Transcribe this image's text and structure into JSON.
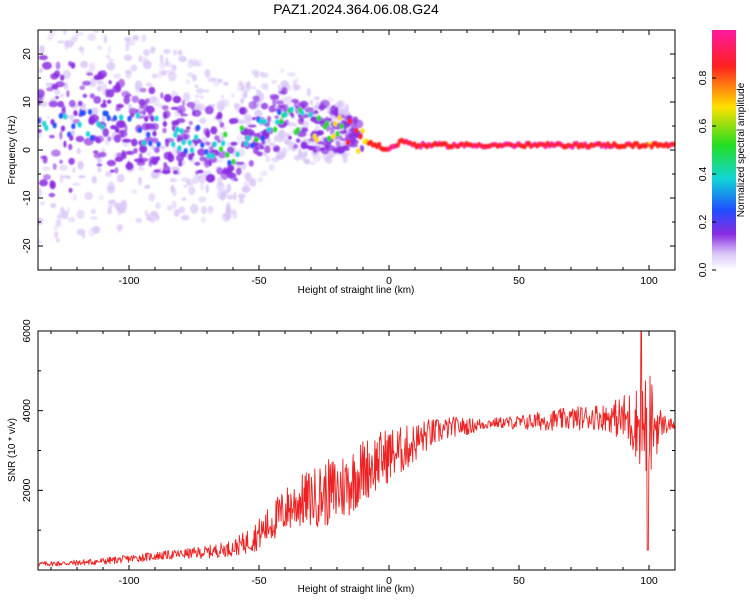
{
  "title": "PAZ1.2024.364.06.08.G24",
  "chart_data": [
    {
      "type": "heatmap",
      "title": "PAZ1.2024.364.06.08.G24",
      "xlabel": "Height of straight line (km)",
      "ylabel": "Frequency (Hz)",
      "xlim": [
        -135,
        110
      ],
      "ylim": [
        -25,
        25
      ],
      "xticks": [
        -100,
        -50,
        0,
        50,
        100
      ],
      "yticks": [
        -20,
        -10,
        0,
        10,
        20
      ],
      "colorbar": {
        "label": "Normalized spectral amplitude",
        "range": [
          0,
          1
        ],
        "ticks": [
          0.0,
          0.2,
          0.4,
          0.6,
          0.8
        ],
        "colormap": "rainbow: white-lavender, purple, blue, cyan, green, yellow, red, magenta"
      },
      "ridge": {
        "x": [
          -130,
          -110,
          -100,
          -90,
          -80,
          -70,
          -60,
          -50,
          -40,
          -30,
          -20,
          -15,
          -10,
          -5,
          0,
          5,
          10,
          20,
          40,
          60,
          80,
          95,
          100,
          110
        ],
        "frequency": [
          5,
          5,
          5,
          4,
          3,
          1,
          0,
          5,
          7,
          5,
          4,
          4,
          2,
          1,
          0,
          2,
          1,
          1,
          1,
          1,
          1,
          1,
          1,
          1
        ],
        "amplitude": [
          0.25,
          0.3,
          0.3,
          0.3,
          0.3,
          0.35,
          0.35,
          0.35,
          0.4,
          0.45,
          0.6,
          0.7,
          0.75,
          0.8,
          0.85,
          0.85,
          0.9,
          0.9,
          0.92,
          0.92,
          0.9,
          0.8,
          0.7,
          0.85
        ]
      },
      "colors": {
        "lavender": "#d8c4f7",
        "purple": "#8a2be2",
        "blue": "#1f4fff",
        "cyan": "#11d6d6",
        "green": "#22dd22",
        "yellow": "#ffe000",
        "red": "#ff2020",
        "magenta": "#ff1aa0"
      }
    },
    {
      "type": "line",
      "xlabel": "Height of straight line (km)",
      "ylabel": "SNR (10 * v/v)",
      "xlim": [
        -135,
        110
      ],
      "ylim": [
        0,
        6000
      ],
      "xticks": [
        -100,
        -50,
        0,
        50,
        100
      ],
      "yticks": [
        2000,
        4000,
        6000
      ],
      "color": "#ee2222",
      "series": [
        {
          "x": [
            -135,
            -120,
            -110,
            -100,
            -90,
            -80,
            -70,
            -60,
            -55,
            -50,
            -45,
            -40,
            -35,
            -30,
            -25,
            -20,
            -15,
            -10,
            -5,
            0,
            5,
            10,
            15,
            20,
            25,
            30,
            40,
            50,
            60,
            70,
            80,
            90,
            95,
            100,
            105,
            110
          ],
          "values": [
            150,
            180,
            220,
            280,
            350,
            400,
            450,
            550,
            700,
            900,
            1200,
            1500,
            1700,
            1800,
            1900,
            2000,
            2200,
            2500,
            2700,
            2900,
            3000,
            3200,
            3400,
            3500,
            3600,
            3600,
            3700,
            3700,
            3750,
            3800,
            3850,
            3800,
            3700,
            3600,
            3650,
            3650
          ]
        }
      ]
    }
  ]
}
